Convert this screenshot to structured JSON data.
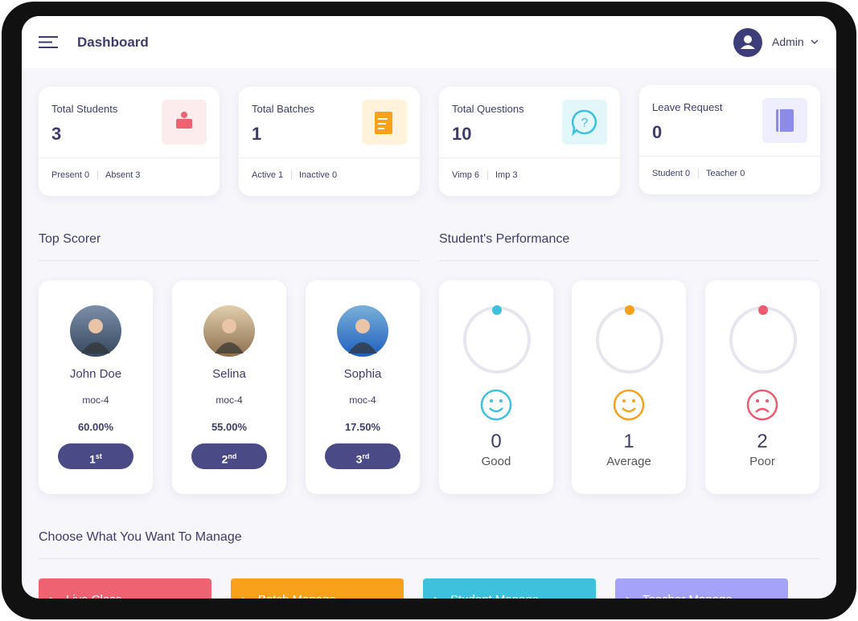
{
  "header": {
    "title": "Dashboard",
    "user": "Admin"
  },
  "stats": [
    {
      "title": "Total Students",
      "value": "3",
      "items": [
        "Present 0",
        "Absent 3"
      ]
    },
    {
      "title": "Total Batches",
      "value": "1",
      "items": [
        "Active 1",
        "Inactive 0"
      ]
    },
    {
      "title": "Total Questions",
      "value": "10",
      "items": [
        "Vimp 6",
        "Imp 3"
      ]
    },
    {
      "title": "Leave Request",
      "value": "0",
      "items": [
        "Student 0",
        "Teacher 0"
      ]
    }
  ],
  "top_scorer": {
    "heading": "Top Scorer",
    "scorers": [
      {
        "name": "John Doe",
        "batch": "moc-4",
        "score": "60.00%",
        "rank": "1",
        "rank_suffix": "st"
      },
      {
        "name": "Selina",
        "batch": "moc-4",
        "score": "55.00%",
        "rank": "2",
        "rank_suffix": "nd"
      },
      {
        "name": "Sophia",
        "batch": "moc-4",
        "score": "17.50%",
        "rank": "3",
        "rank_suffix": "rd"
      }
    ]
  },
  "performance": {
    "heading": "Student's Performance",
    "items": [
      {
        "value": "0",
        "label": "Good"
      },
      {
        "value": "1",
        "label": "Average"
      },
      {
        "value": "2",
        "label": "Poor"
      }
    ]
  },
  "manage": {
    "heading": "Choose What You Want To Manage",
    "buttons": [
      "Live Class",
      "Batch Manage",
      "Student Manage",
      "Teacher Manage"
    ]
  }
}
